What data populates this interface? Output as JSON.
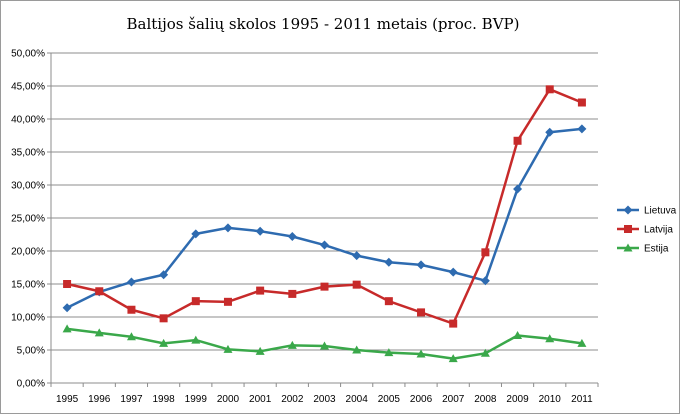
{
  "chart_data": {
    "type": "line",
    "title": "Baltijos šalių skolos 1995 - 2011 metais (proc. BVP)",
    "xlabel": "",
    "ylabel": "",
    "categories": [
      "1995",
      "1996",
      "1997",
      "1998",
      "1999",
      "2000",
      "2001",
      "2002",
      "2003",
      "2004",
      "2005",
      "2006",
      "2007",
      "2008",
      "2009",
      "2010",
      "2011"
    ],
    "yticks": [
      "0,00%",
      "5,00%",
      "10,00%",
      "15,00%",
      "20,00%",
      "25,00%",
      "30,00%",
      "35,00%",
      "40,00%",
      "45,00%",
      "50,00%"
    ],
    "ylim": [
      0,
      50
    ],
    "grid": true,
    "legend_position": "right",
    "series": [
      {
        "name": "Lietuva",
        "color": "#2e6bb0",
        "marker": "diamond",
        "values": [
          11.4,
          13.8,
          15.3,
          16.4,
          22.6,
          23.5,
          23.0,
          22.2,
          20.9,
          19.3,
          18.3,
          17.9,
          16.8,
          15.5,
          29.4,
          38.0,
          38.5
        ]
      },
      {
        "name": "Latvija",
        "color": "#c72a2a",
        "marker": "square",
        "values": [
          15.0,
          13.9,
          11.1,
          9.8,
          12.4,
          12.3,
          14.0,
          13.5,
          14.6,
          14.9,
          12.4,
          10.7,
          9.0,
          19.8,
          36.7,
          44.5,
          42.5
        ]
      },
      {
        "name": "Estija",
        "color": "#3aa84a",
        "marker": "triangle",
        "values": [
          8.2,
          7.6,
          7.0,
          6.0,
          6.5,
          5.1,
          4.8,
          5.7,
          5.6,
          5.0,
          4.6,
          4.4,
          3.7,
          4.5,
          7.2,
          6.7,
          6.0
        ]
      }
    ]
  }
}
